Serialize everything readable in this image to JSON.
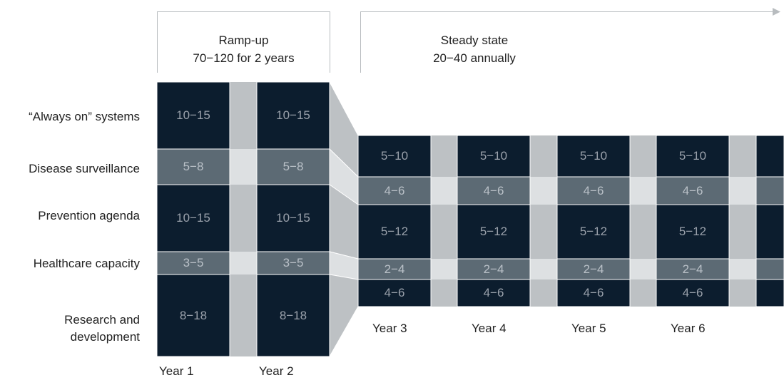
{
  "phases": {
    "rampup": {
      "title": "Ramp-up",
      "subtitle": "70−120 for 2 years"
    },
    "steady": {
      "title": "Steady state",
      "subtitle": "20−40 annually"
    }
  },
  "categories": [
    "“Always on” systems",
    "Disease surveillance",
    "Prevention agenda",
    "Healthcare capacity",
    "Research and development"
  ],
  "rampup_values": [
    "10−15",
    "5−8",
    "10−15",
    "3−5",
    "8−18"
  ],
  "steady_values": [
    "5−10",
    "4−6",
    "5−12",
    "2−4",
    "4−6"
  ],
  "rampup_years": [
    "Year 1",
    "Year 2"
  ],
  "steady_years": [
    "Year 3",
    "Year 4",
    "Year 5",
    "Year 6"
  ],
  "colors": {
    "dark": "#0c1d2e",
    "mid": "#5c6a74",
    "grey": "#bdc1c4",
    "lightgrey": "#dde0e2",
    "line": "#b8bcbf"
  }
}
